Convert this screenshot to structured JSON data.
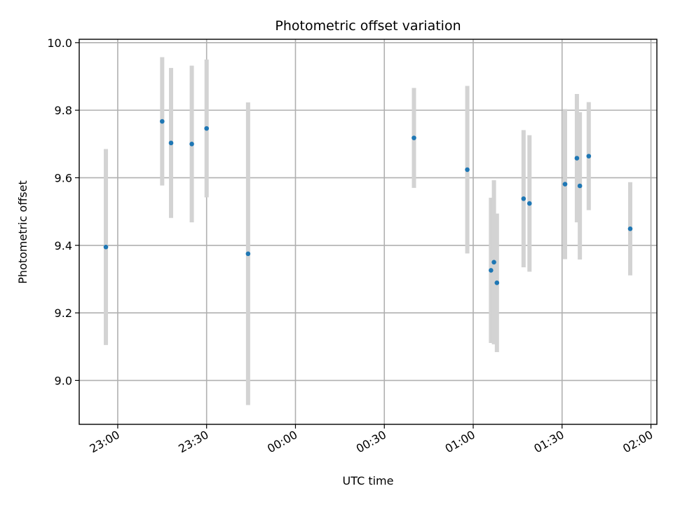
{
  "chart_data": {
    "type": "scatter",
    "title": "Photometric offset variation",
    "xlabel": "UTC time",
    "ylabel": "Photometric offset",
    "grid": true,
    "xlim": [
      "22:47",
      "02:02"
    ],
    "ylim": [
      8.87,
      10.01
    ],
    "x_tick_labels": [
      "23:00",
      "23:30",
      "00:00",
      "00:30",
      "01:00",
      "01:30",
      "02:00"
    ],
    "y_tick_labels": [
      "9.0",
      "9.2",
      "9.4",
      "9.6",
      "9.8",
      "10.0"
    ],
    "y_ticks": [
      9.0,
      9.2,
      9.4,
      9.6,
      9.8,
      10.0
    ],
    "marker_color": "#1f77b4",
    "errorbar_color": "#d3d3d3",
    "points": [
      {
        "x": "22:56",
        "y": 9.395,
        "yerr": 0.29
      },
      {
        "x": "23:15",
        "y": 9.767,
        "yerr": 0.19
      },
      {
        "x": "23:18",
        "y": 9.703,
        "yerr": 0.222
      },
      {
        "x": "23:25",
        "y": 9.7,
        "yerr": 0.232
      },
      {
        "x": "23:30",
        "y": 9.746,
        "yerr": 0.204
      },
      {
        "x": "23:44",
        "y": 9.375,
        "yerr": 0.448
      },
      {
        "x": "00:40",
        "y": 9.718,
        "yerr": 0.148
      },
      {
        "x": "00:58",
        "y": 9.624,
        "yerr": 0.248
      },
      {
        "x": "01:06",
        "y": 9.326,
        "yerr": 0.215
      },
      {
        "x": "01:07",
        "y": 9.35,
        "yerr": 0.243
      },
      {
        "x": "01:08",
        "y": 9.289,
        "yerr": 0.205
      },
      {
        "x": "01:17",
        "y": 9.538,
        "yerr": 0.203
      },
      {
        "x": "01:19",
        "y": 9.524,
        "yerr": 0.202
      },
      {
        "x": "01:31",
        "y": 9.581,
        "yerr": 0.222
      },
      {
        "x": "01:35",
        "y": 9.658,
        "yerr": 0.19
      },
      {
        "x": "01:36",
        "y": 9.576,
        "yerr": 0.218
      },
      {
        "x": "01:39",
        "y": 9.664,
        "yerr": 0.16
      },
      {
        "x": "01:53",
        "y": 9.449,
        "yerr": 0.138
      }
    ]
  }
}
